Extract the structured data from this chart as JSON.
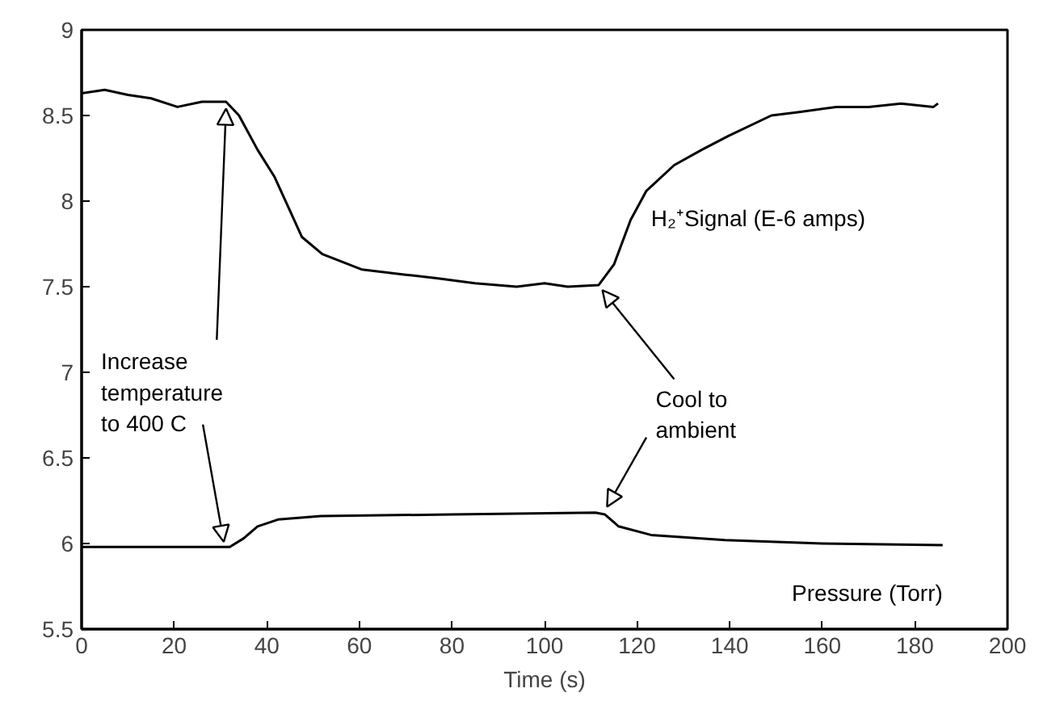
{
  "chart_data": {
    "type": "line",
    "xlabel": "Time (s)",
    "xlim": [
      0,
      200
    ],
    "xticks": [
      0,
      20,
      40,
      60,
      80,
      100,
      120,
      140,
      160,
      180,
      200
    ],
    "ylim": [
      5.5,
      9
    ],
    "yticks": [
      5.5,
      6,
      6.5,
      7,
      7.5,
      8,
      8.5,
      9
    ],
    "grid": false,
    "marker": "none",
    "line_style": "solid",
    "series": [
      {
        "name": "H₂⁺Signal (E-6 amps)",
        "color": "#000000",
        "x": [
          0,
          5,
          10,
          15,
          20.7,
          26,
          31.2,
          34,
          38,
          41.7,
          47.6,
          52,
          60.6,
          70,
          76.7,
          85,
          94,
          100,
          105,
          111.7,
          115,
          118.6,
          122,
          128,
          134,
          139.7,
          149,
          155,
          163,
          170,
          177,
          184,
          185
        ],
        "values": [
          8.63,
          8.65,
          8.62,
          8.6,
          8.55,
          8.58,
          8.58,
          8.5,
          8.3,
          8.14,
          7.79,
          7.69,
          7.6,
          7.57,
          7.55,
          7.52,
          7.5,
          7.52,
          7.5,
          7.51,
          7.63,
          7.89,
          8.06,
          8.21,
          8.3,
          8.38,
          8.5,
          8.52,
          8.55,
          8.55,
          8.57,
          8.55,
          8.57
        ]
      },
      {
        "name": "Pressure (Torr)",
        "color": "#000000",
        "x": [
          0,
          32,
          35,
          38,
          42.4,
          51.7,
          80,
          111,
          113,
          116,
          123,
          139,
          160,
          186
        ],
        "values": [
          5.98,
          5.98,
          6.03,
          6.1,
          6.14,
          6.16,
          6.17,
          6.18,
          6.17,
          6.1,
          6.05,
          6.02,
          6.0,
          5.99
        ]
      }
    ],
    "annotations": [
      {
        "text": "Increase\ntemperature\nto 400 C",
        "x": 31.2,
        "y": 8.58
      },
      {
        "text": "Cool to\nambient",
        "x": 112,
        "y": 7.51
      }
    ]
  }
}
